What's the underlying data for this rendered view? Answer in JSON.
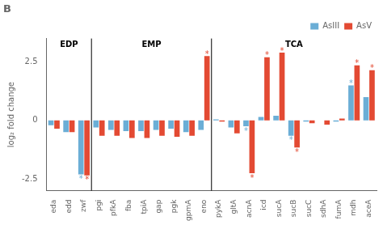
{
  "chart_data": {
    "type": "bar",
    "title": "B",
    "y_label": "log₂ fold change",
    "categories": [
      "eda",
      "edd",
      "zwf",
      "pgi",
      "pfkA",
      "fba",
      "tpiA",
      "gap",
      "pgk",
      "gpmA",
      "eno",
      "pykA",
      "gltA",
      "acnA",
      "icd",
      "sucA",
      "sucB",
      "sucC",
      "sdhA",
      "fumA",
      "mdh",
      "aceA"
    ],
    "series": [
      {
        "name": "AsIII",
        "color": "#6baed6",
        "values": [
          -0.2,
          -0.5,
          -2.3,
          -0.3,
          -0.4,
          -0.45,
          -0.45,
          -0.4,
          -0.35,
          -0.5,
          -0.4,
          0.05,
          -0.3,
          -0.25,
          0.15,
          0.2,
          -0.65,
          -0.05,
          0.0,
          -0.05,
          1.5,
          1.0
        ]
      },
      {
        "name": "AsV",
        "color": "#e34a33",
        "values": [
          -0.35,
          -0.5,
          -2.35,
          -0.65,
          -0.65,
          -0.75,
          -0.75,
          -0.65,
          -0.7,
          -0.65,
          2.75,
          -0.05,
          -0.55,
          -2.25,
          2.7,
          2.9,
          -1.15,
          -0.12,
          -0.18,
          0.08,
          2.35,
          2.15
        ]
      }
    ],
    "sections": [
      {
        "label": "EDP",
        "start": "eda",
        "end": "zwf"
      },
      {
        "label": "EMP",
        "start": "pgi",
        "end": "eno"
      },
      {
        "label": "TCA",
        "start": "pykA",
        "end": "aceA"
      }
    ],
    "annotations": [
      {
        "text": "*",
        "series": "AsIII",
        "category": "zwf"
      },
      {
        "text": "*",
        "series": "AsIII",
        "category": "acnA"
      },
      {
        "text": "*",
        "series": "AsIII",
        "category": "sucB"
      },
      {
        "text": "*",
        "series": "AsIII",
        "category": "mdh"
      },
      {
        "text": "*",
        "series": "AsV",
        "category": "zwf"
      },
      {
        "text": "*",
        "series": "AsV",
        "category": "eno"
      },
      {
        "text": "*",
        "series": "AsV",
        "category": "acnA"
      },
      {
        "text": "*",
        "series": "AsV",
        "category": "icd"
      },
      {
        "text": "*",
        "series": "AsV",
        "category": "sucA"
      },
      {
        "text": "*",
        "series": "AsV",
        "category": "sucB"
      },
      {
        "text": "*",
        "series": "AsV",
        "category": "mdh"
      },
      {
        "text": "*",
        "series": "AsV",
        "category": "aceA"
      }
    ],
    "ylim": [
      -3.0,
      3.5
    ],
    "yticks": [
      -2.5,
      0.0,
      2.5
    ],
    "grid": false,
    "legend": "upper right"
  }
}
